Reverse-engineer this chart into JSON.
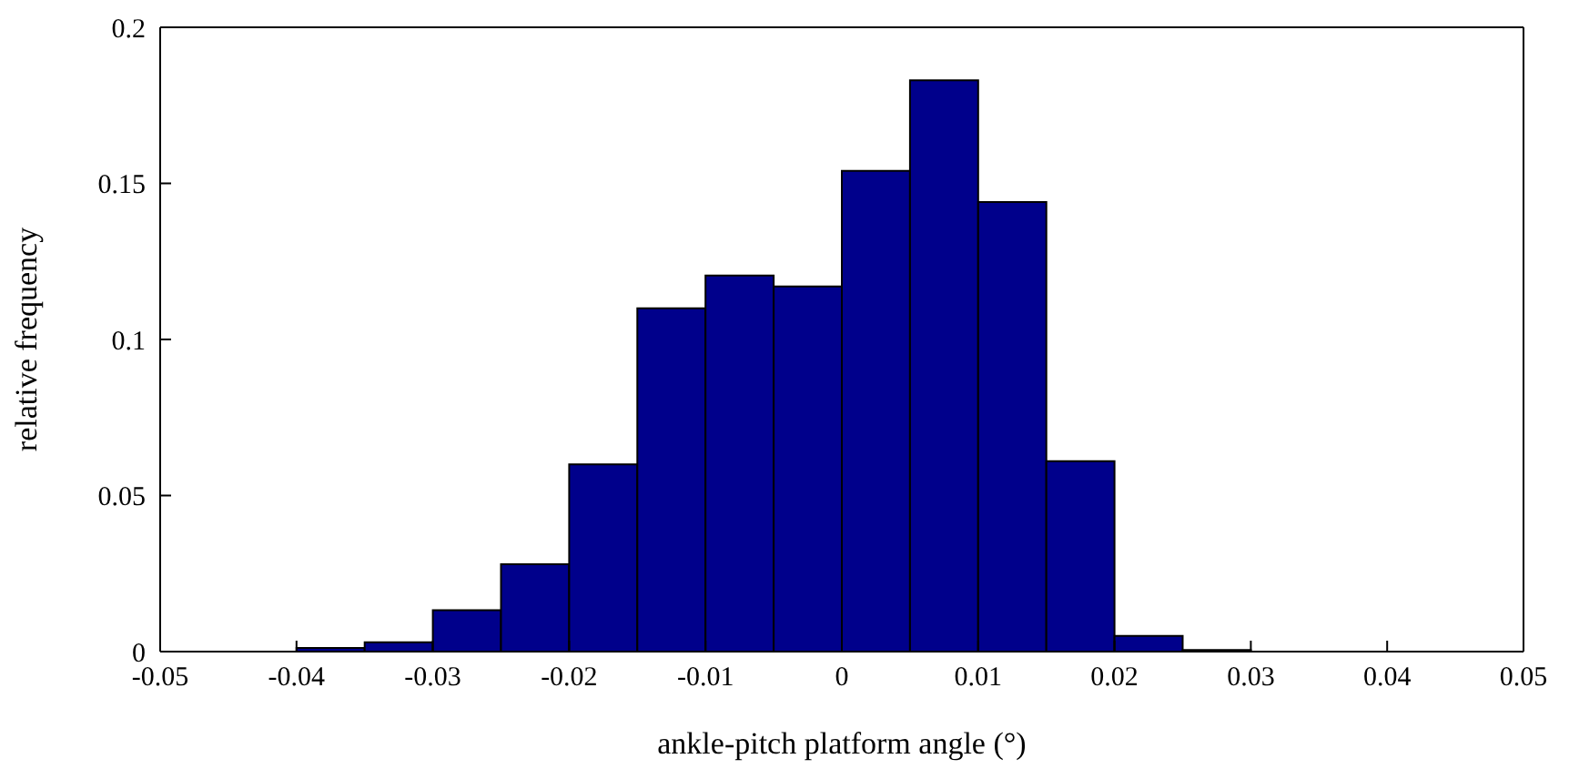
{
  "chart_data": {
    "type": "histogram",
    "xlabel": "ankle-pitch platform angle (°)",
    "ylabel": "relative frequency",
    "bins": [
      -0.04,
      -0.035,
      -0.03,
      -0.025,
      -0.02,
      -0.015,
      -0.01,
      -0.005,
      0,
      0.005,
      0.01,
      0.015,
      0.02,
      0.025,
      0.03
    ],
    "values": [
      0.0012,
      0.003,
      0.0133,
      0.028,
      0.06,
      0.11,
      0.1205,
      0.117,
      0.154,
      0.183,
      0.144,
      0.061,
      0.005,
      0.0005
    ],
    "color": "#00008b",
    "xlim": [
      -0.05,
      0.05
    ],
    "xticks": [
      -0.05,
      -0.04,
      -0.03,
      -0.02,
      -0.01,
      0,
      0.01,
      0.02,
      0.03,
      0.04,
      0.05
    ],
    "ylim": [
      0,
      0.2
    ],
    "yticks": [
      0,
      0.05,
      0.1,
      0.15,
      0.2
    ],
    "grid": false
  }
}
